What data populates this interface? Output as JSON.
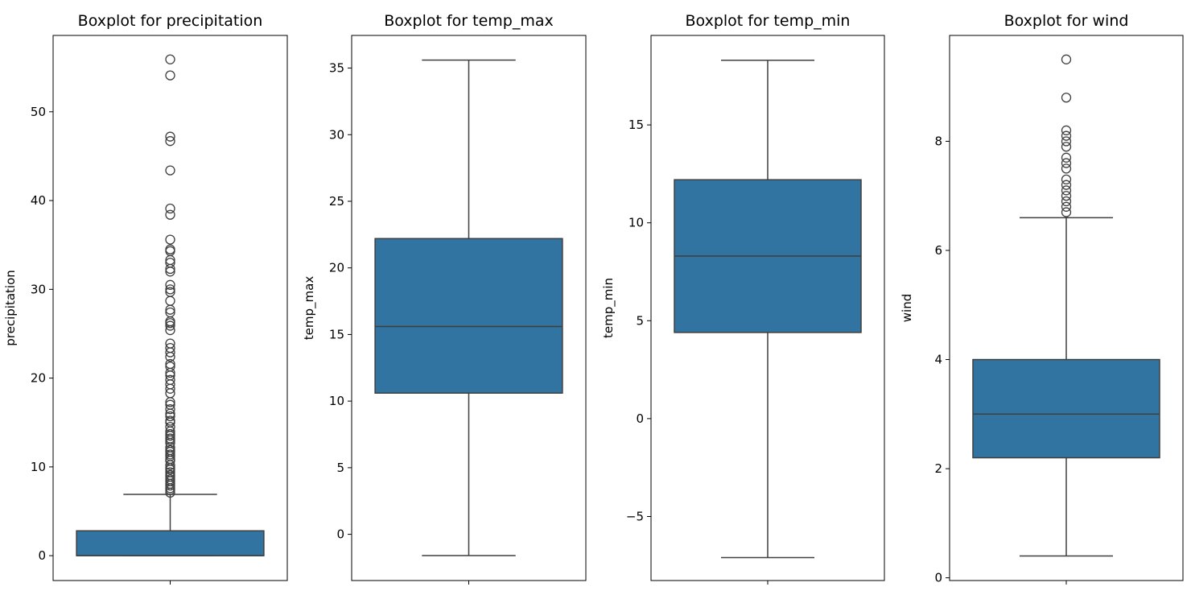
{
  "chart_data": [
    {
      "type": "box",
      "title": "Boxplot for precipitation",
      "ylabel": "precipitation",
      "xlabel": "",
      "ylim": [
        -2.8,
        58.6
      ],
      "yticks": [
        0,
        10,
        20,
        30,
        40,
        50
      ],
      "ytick_labels": [
        "0",
        "10",
        "20",
        "30",
        "40",
        "50"
      ],
      "grid": false,
      "box": {
        "whisker_low": 0,
        "q1": 0,
        "median": 0,
        "q3": 2.8,
        "whisker_high": 6.9
      },
      "outliers": [
        7.1,
        7.4,
        7.6,
        7.9,
        8.1,
        8.4,
        8.6,
        8.9,
        9.1,
        9.4,
        9.7,
        9.9,
        10.2,
        10.7,
        10.9,
        11.2,
        11.4,
        11.7,
        11.9,
        12.2,
        12.7,
        13.0,
        13.2,
        13.5,
        13.7,
        14.0,
        14.5,
        15.0,
        15.2,
        15.7,
        16.0,
        16.5,
        17.0,
        17.3,
        18.3,
        18.8,
        19.3,
        19.8,
        20.3,
        20.6,
        21.3,
        21.6,
        22.4,
        22.9,
        23.4,
        23.9,
        25.4,
        25.9,
        26.2,
        26.4,
        27.4,
        27.7,
        28.7,
        29.7,
        30.0,
        30.5,
        32.0,
        32.3,
        33.0,
        33.3,
        34.3,
        34.5,
        35.6,
        38.4,
        39.1,
        43.4,
        46.7,
        47.2,
        54.1,
        55.9
      ]
    },
    {
      "type": "box",
      "title": "Boxplot for temp_max",
      "ylabel": "temp_max",
      "xlabel": "",
      "ylim": [
        -3.47,
        37.45
      ],
      "yticks": [
        0,
        5,
        10,
        15,
        20,
        25,
        30,
        35
      ],
      "ytick_labels": [
        "0",
        "5",
        "10",
        "15",
        "20",
        "25",
        "30",
        "35"
      ],
      "grid": false,
      "box": {
        "whisker_low": -1.6,
        "q1": 10.6,
        "median": 15.6,
        "q3": 22.2,
        "whisker_high": 35.6
      },
      "outliers": []
    },
    {
      "type": "box",
      "title": "Boxplot for temp_min",
      "ylabel": "temp_min",
      "xlabel": "",
      "ylim": [
        -8.27,
        19.57
      ],
      "yticks": [
        -5,
        0,
        5,
        10,
        15
      ],
      "ytick_labels": [
        "−5",
        "0",
        "5",
        "10",
        "15"
      ],
      "grid": false,
      "box": {
        "whisker_low": -7.1,
        "q1": 4.4,
        "median": 8.3,
        "q3": 12.2,
        "whisker_high": 18.3
      },
      "outliers": []
    },
    {
      "type": "box",
      "title": "Boxplot for wind",
      "ylabel": "wind",
      "xlabel": "",
      "ylim": [
        -0.05,
        9.94
      ],
      "yticks": [
        0,
        2,
        4,
        6,
        8
      ],
      "ytick_labels": [
        "0",
        "2",
        "4",
        "6",
        "8"
      ],
      "grid": false,
      "box": {
        "whisker_low": 0.4,
        "q1": 2.2,
        "median": 3.0,
        "q3": 4.0,
        "whisker_high": 6.6
      },
      "outliers": [
        6.7,
        6.8,
        6.9,
        7.0,
        7.1,
        7.2,
        7.3,
        7.5,
        7.6,
        7.7,
        7.9,
        8.0,
        8.1,
        8.2,
        8.8,
        9.5
      ]
    }
  ],
  "colors": {
    "box_fill": "#3274a1",
    "line": "#3f3f3f",
    "spine": "#000000"
  }
}
